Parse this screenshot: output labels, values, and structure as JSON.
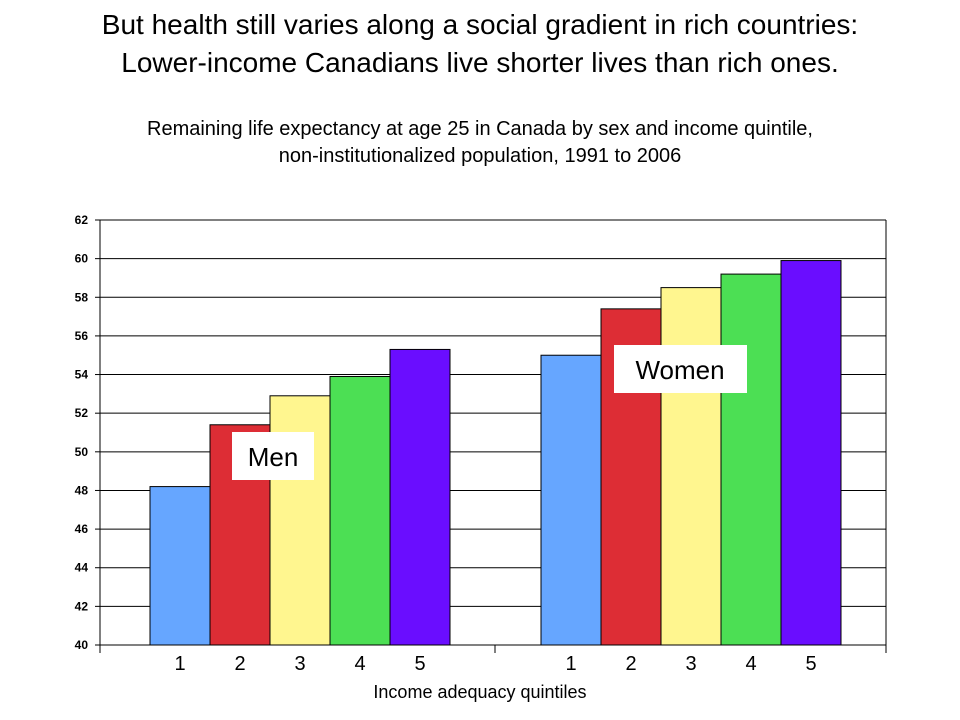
{
  "title_line1": "But health still varies along a social gradient in rich countries:",
  "title_line2": "Lower-income Canadians live shorter lives than rich ones.",
  "subtitle_line1": "Remaining life expectancy at age 25 in Canada by sex and income quintile,",
  "subtitle_line2": "non-institutionalized population, 1991 to 2006",
  "chart_data": {
    "type": "bar",
    "title": "Remaining life expectancy at age 25 in Canada by sex and income quintile, non-institutionalized population, 1991 to 2006",
    "xlabel": "Income adequacy quintiles",
    "ylabel": "",
    "ylim": [
      40,
      62
    ],
    "yticks": [
      40,
      42,
      44,
      46,
      48,
      50,
      52,
      54,
      56,
      58,
      60,
      62
    ],
    "grid": true,
    "categories": [
      "1",
      "2",
      "3",
      "4",
      "5"
    ],
    "groups": [
      {
        "name": "Men",
        "values": [
          48.2,
          51.4,
          52.9,
          53.9,
          55.3
        ]
      },
      {
        "name": "Women",
        "values": [
          55.0,
          57.4,
          58.5,
          59.2,
          59.9
        ]
      }
    ],
    "colors": [
      "#66a6ff",
      "#dd2d35",
      "#fff68f",
      "#4cdf54",
      "#6a0dff"
    ]
  }
}
